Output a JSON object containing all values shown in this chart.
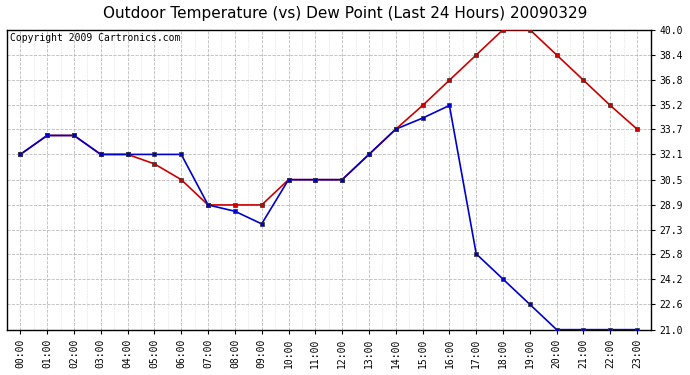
{
  "title": "Outdoor Temperature (vs) Dew Point (Last 24 Hours) 20090329",
  "copyright": "Copyright 2009 Cartronics.com",
  "x_labels": [
    "00:00",
    "01:00",
    "02:00",
    "03:00",
    "04:00",
    "05:00",
    "06:00",
    "07:00",
    "08:00",
    "09:00",
    "10:00",
    "11:00",
    "12:00",
    "13:00",
    "14:00",
    "15:00",
    "16:00",
    "17:00",
    "18:00",
    "19:00",
    "20:00",
    "21:00",
    "22:00",
    "23:00"
  ],
  "temp_data": [
    32.1,
    33.3,
    33.3,
    32.1,
    32.1,
    31.5,
    30.5,
    28.9,
    28.9,
    28.9,
    30.5,
    30.5,
    30.5,
    32.1,
    33.7,
    35.2,
    36.8,
    38.4,
    40.0,
    40.0,
    38.4,
    36.8,
    35.2,
    33.7
  ],
  "dew_data": [
    32.1,
    33.3,
    33.3,
    32.1,
    32.1,
    32.1,
    32.1,
    28.9,
    28.5,
    27.7,
    30.5,
    30.5,
    30.5,
    32.1,
    33.7,
    34.4,
    35.2,
    25.8,
    24.2,
    22.6,
    21.0,
    21.0,
    21.0,
    21.0
  ],
  "temp_color": "#cc0000",
  "dew_color": "#0000cc",
  "marker": "s",
  "marker_size": 3,
  "ylim_min": 21.0,
  "ylim_max": 40.0,
  "yticks": [
    21.0,
    22.6,
    24.2,
    25.8,
    27.3,
    28.9,
    30.5,
    32.1,
    33.7,
    35.2,
    36.8,
    38.4,
    40.0
  ],
  "bg_color": "#ffffff",
  "plot_bg_color": "#ffffff",
  "grid_color_major": "#aaaaaa",
  "grid_color_minor": "#cccccc",
  "title_fontsize": 11,
  "tick_fontsize": 7,
  "copyright_fontsize": 7
}
